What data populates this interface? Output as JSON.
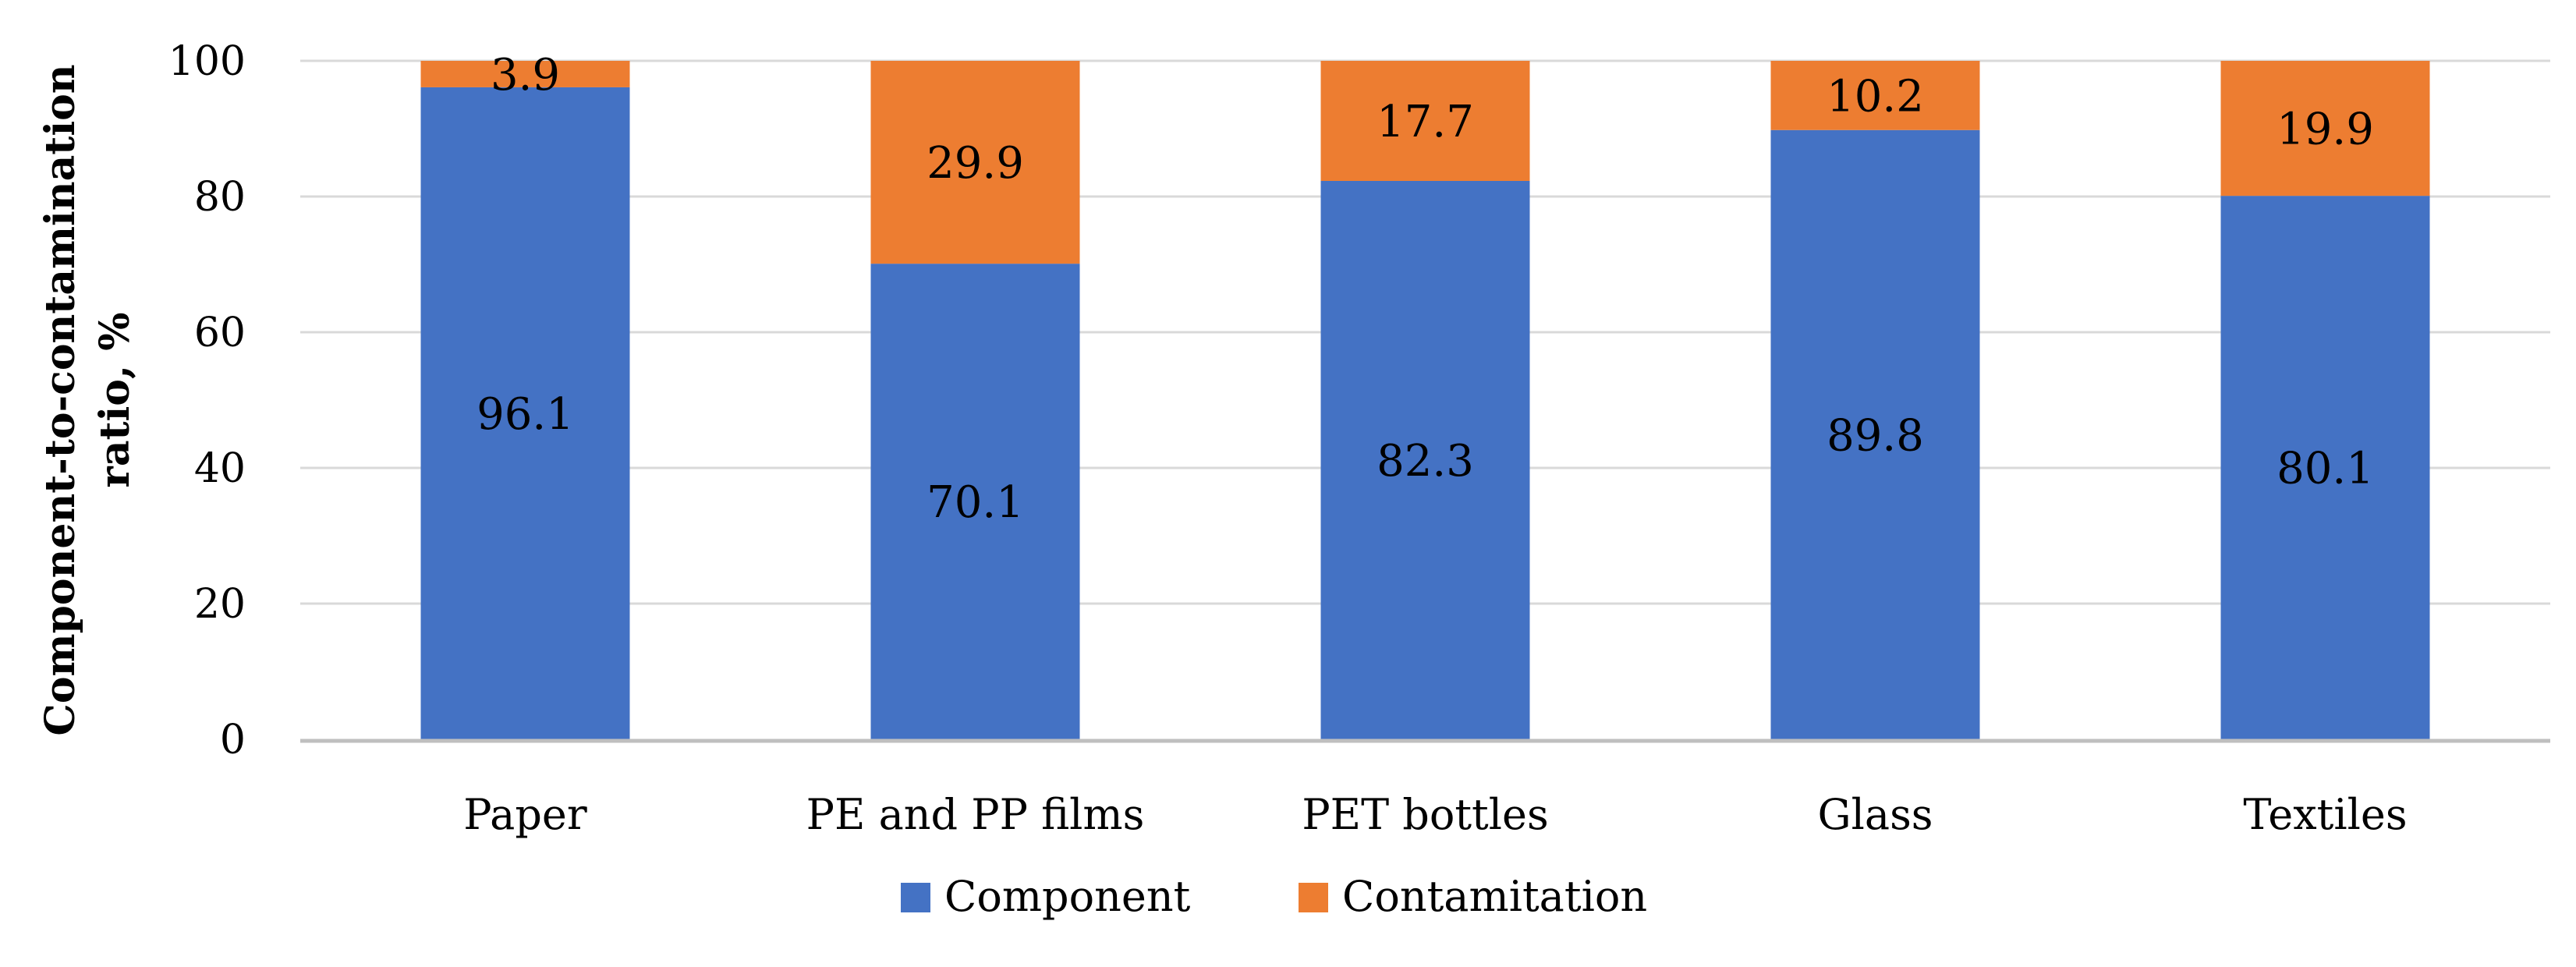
{
  "chart_data": {
    "type": "bar",
    "stacked": true,
    "title": "",
    "xlabel": "",
    "ylabel_lines": [
      "Component-to-contamination",
      "ratio, %"
    ],
    "ylim": [
      0,
      100
    ],
    "yticks": [
      0,
      20,
      40,
      60,
      80,
      100
    ],
    "ytick_labels": [
      "0",
      "20",
      "40",
      "60",
      "80",
      "100"
    ],
    "categories": [
      "Paper",
      "PE and PP films",
      "PET bottles",
      "Glass",
      "Textiles"
    ],
    "series": [
      {
        "name": "Component",
        "color": "#4472c4",
        "values": [
          96.1,
          70.1,
          82.3,
          89.8,
          80.1
        ],
        "labels": [
          "96.1",
          "70.1",
          "82.3",
          "89.8",
          "80.1"
        ]
      },
      {
        "name": "Contamitation",
        "color": "#ed7d31",
        "values": [
          3.9,
          29.9,
          17.7,
          10.2,
          19.9
        ],
        "labels": [
          "3.9",
          "29.9",
          "17.7",
          "10.2",
          "19.9"
        ]
      }
    ],
    "grid": true,
    "legend_position": "bottom"
  }
}
